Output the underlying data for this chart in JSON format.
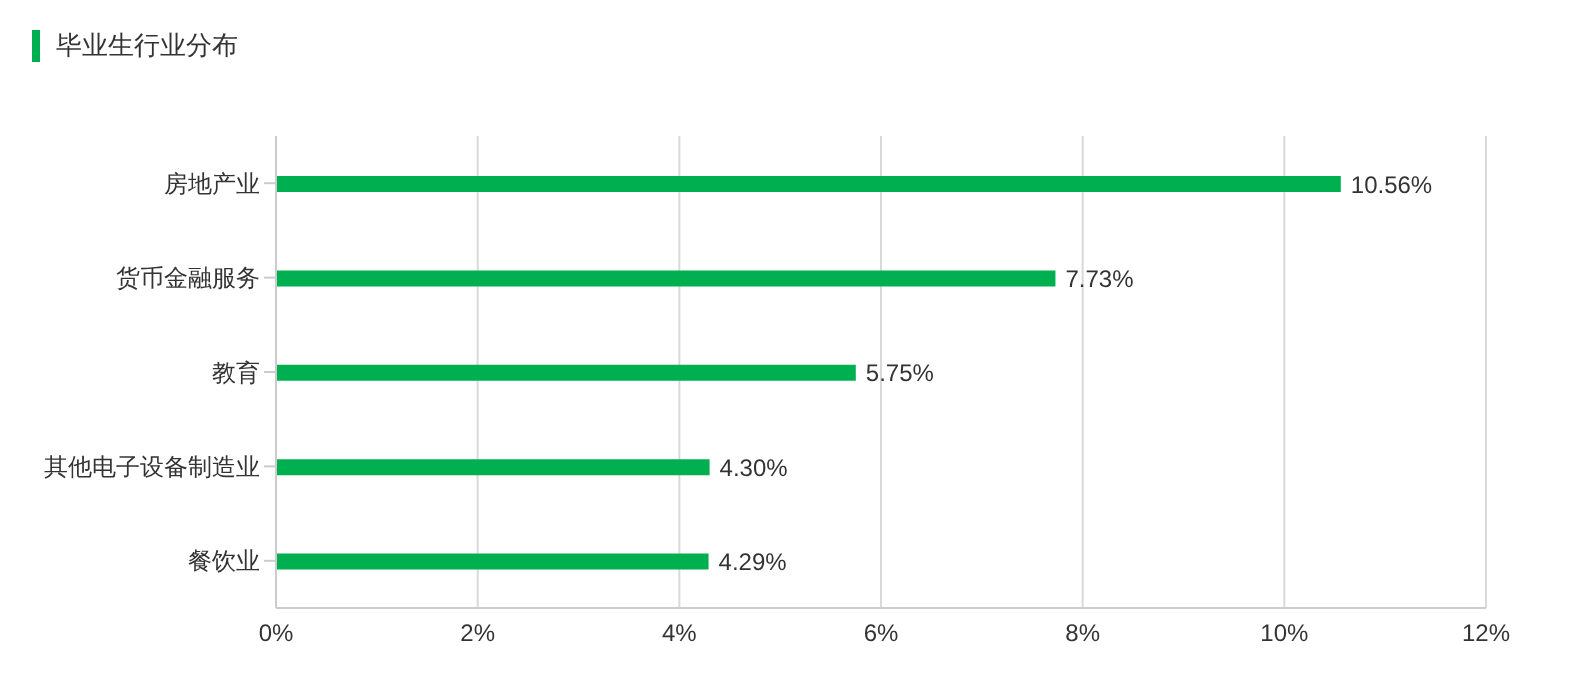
{
  "chart_data": {
    "type": "bar",
    "orientation": "horizontal",
    "title": "毕业生行业分布",
    "categories": [
      "房地产业",
      "货币金融服务",
      "教育",
      "其他电子设备制造业",
      "餐饮业"
    ],
    "values": [
      10.56,
      7.73,
      5.75,
      4.3,
      4.29
    ],
    "value_labels": [
      "10.56%",
      "7.73%",
      "5.75%",
      "4.30%",
      "4.29%"
    ],
    "color": "#00b050",
    "xlim": [
      0,
      12
    ],
    "xticks": [
      {
        "value": 0,
        "label": "0%"
      },
      {
        "value": 2,
        "label": "2%"
      },
      {
        "value": 4,
        "label": "4%"
      },
      {
        "value": 6,
        "label": "6%"
      },
      {
        "value": 8,
        "label": "8%"
      },
      {
        "value": 10,
        "label": "10%"
      },
      {
        "value": 12,
        "label": "12%"
      }
    ],
    "grid": "x"
  }
}
